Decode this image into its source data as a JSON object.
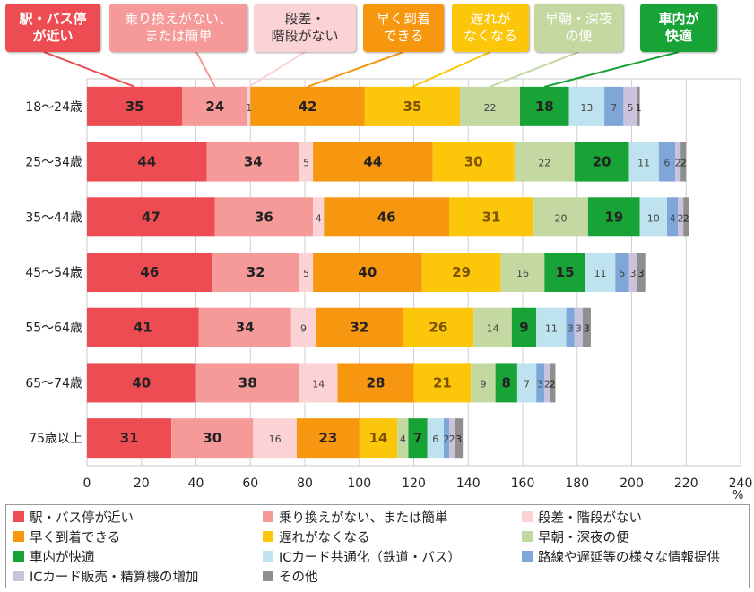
{
  "chart_data": {
    "type": "bar",
    "orientation": "horizontal",
    "stacked": true,
    "unit": "%",
    "xlim": [
      0,
      240
    ],
    "xticks": [
      0,
      20,
      40,
      60,
      80,
      100,
      120,
      140,
      160,
      180,
      200,
      220,
      240
    ],
    "categories": [
      "18〜24歳",
      "25〜34歳",
      "35〜44歳",
      "45〜54歳",
      "55〜64歳",
      "65〜74歳",
      "75歳以上"
    ],
    "series": [
      {
        "name": "駅・バス停が近い",
        "color": "#ee4c53",
        "values": [
          35,
          44,
          47,
          46,
          41,
          40,
          31
        ]
      },
      {
        "name": "乗り換えがない、または簡単",
        "color": "#f59999",
        "values": [
          24,
          34,
          36,
          32,
          34,
          38,
          30
        ]
      },
      {
        "name": "段差・階段がない",
        "color": "#fbd3d5",
        "values": [
          1,
          5,
          4,
          5,
          9,
          14,
          16
        ]
      },
      {
        "name": "早く到着できる",
        "color": "#f7960f",
        "values": [
          42,
          44,
          46,
          40,
          32,
          28,
          23
        ]
      },
      {
        "name": "遅れがなくなる",
        "color": "#fcc60a",
        "values": [
          35,
          30,
          31,
          29,
          26,
          21,
          14
        ]
      },
      {
        "name": "早朝・深夜の便",
        "color": "#c4d8a2",
        "values": [
          22,
          22,
          20,
          16,
          14,
          9,
          4
        ]
      },
      {
        "name": "車内が快適",
        "color": "#18a337",
        "values": [
          18,
          20,
          19,
          15,
          9,
          8,
          7
        ]
      },
      {
        "name": "ICカード共通化（鉄道・バス）",
        "color": "#bfe3ee",
        "values": [
          13,
          11,
          10,
          11,
          11,
          7,
          6
        ]
      },
      {
        "name": "路線や遅延等の様々な情報提供",
        "color": "#7ea6d8",
        "values": [
          7,
          6,
          4,
          5,
          3,
          3,
          2
        ]
      },
      {
        "name": "ICカード販売・精算機の増加",
        "color": "#cbc3dc",
        "values": [
          5,
          2,
          2,
          3,
          3,
          2,
          2
        ]
      },
      {
        "name": "その他",
        "color": "#8f8f8f",
        "values": [
          1,
          2,
          2,
          3,
          3,
          2,
          3
        ]
      }
    ],
    "grid": true,
    "legend_position": "bottom",
    "callouts": [
      {
        "text": "駅・バス停\nが近い",
        "bg": "#ee4c53",
        "fg": "#ffffff",
        "series": 0
      },
      {
        "text": "乗り換えがない、\nまたは簡単",
        "bg": "#f59999",
        "fg": "#ffffff",
        "series": 1
      },
      {
        "text": "段差・\n階段がない",
        "bg": "#fbd3d5",
        "fg": "#333333",
        "series": 2
      },
      {
        "text": "早く到着\nできる",
        "bg": "#f7960f",
        "fg": "#ffffff",
        "series": 3
      },
      {
        "text": "遅れが\nなくなる",
        "bg": "#fcc60a",
        "fg": "#ffffff",
        "series": 4
      },
      {
        "text": "早朝・深夜\nの便",
        "bg": "#c4d8a2",
        "fg": "#ffffff",
        "series": 5
      },
      {
        "text": "車内が\n快適",
        "bg": "#18a337",
        "fg": "#ffffff",
        "series": 6
      }
    ]
  }
}
